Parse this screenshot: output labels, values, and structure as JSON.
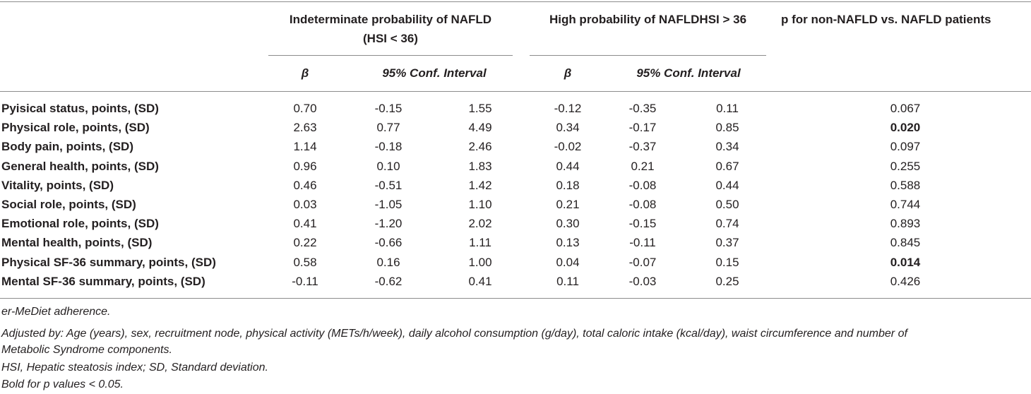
{
  "header": {
    "group1": [
      "Indeterminate probability of NAFLD",
      "(HSI < 36)"
    ],
    "group2": "High probability of NAFLDHSI > 36",
    "group3": "p for non-NAFLD vs. NAFLD patients",
    "beta": "β",
    "ci": "95% Conf. Interval"
  },
  "rows": [
    {
      "label": "Pyisical status, points, (SD)",
      "b1": "0.70",
      "l1": "-0.15",
      "u1": "1.55",
      "b2": "-0.12",
      "l2": "-0.35",
      "u2": "0.11",
      "p": "0.067",
      "bold": false
    },
    {
      "label": "Physical role, points, (SD)",
      "b1": "2.63",
      "l1": "0.77",
      "u1": "4.49",
      "b2": "0.34",
      "l2": "-0.17",
      "u2": "0.85",
      "p": "0.020",
      "bold": true
    },
    {
      "label": "Body pain, points, (SD)",
      "b1": "1.14",
      "l1": "-0.18",
      "u1": "2.46",
      "b2": "-0.02",
      "l2": "-0.37",
      "u2": "0.34",
      "p": "0.097",
      "bold": false
    },
    {
      "label": "General health, points, (SD)",
      "b1": "0.96",
      "l1": "0.10",
      "u1": "1.83",
      "b2": "0.44",
      "l2": "0.21",
      "u2": "0.67",
      "p": "0.255",
      "bold": false
    },
    {
      "label": "Vitality, points, (SD)",
      "b1": "0.46",
      "l1": "-0.51",
      "u1": "1.42",
      "b2": "0.18",
      "l2": "-0.08",
      "u2": "0.44",
      "p": "0.588",
      "bold": false
    },
    {
      "label": "Social role, points, (SD)",
      "b1": "0.03",
      "l1": "-1.05",
      "u1": "1.10",
      "b2": "0.21",
      "l2": "-0.08",
      "u2": "0.50",
      "p": "0.744",
      "bold": false
    },
    {
      "label": "Emotional role, points, (SD)",
      "b1": "0.41",
      "l1": "-1.20",
      "u1": "2.02",
      "b2": "0.30",
      "l2": "-0.15",
      "u2": "0.74",
      "p": "0.893",
      "bold": false
    },
    {
      "label": "Mental health, points, (SD)",
      "b1": "0.22",
      "l1": "-0.66",
      "u1": "1.11",
      "b2": "0.13",
      "l2": "-0.11",
      "u2": "0.37",
      "p": "0.845",
      "bold": false
    },
    {
      "label": "Physical SF-36 summary, points, (SD)",
      "b1": "0.58",
      "l1": "0.16",
      "u1": "1.00",
      "b2": "0.04",
      "l2": "-0.07",
      "u2": "0.15",
      "p": "0.014",
      "bold": true
    },
    {
      "label": "Mental SF-36 summary, points, (SD)",
      "b1": "-0.11",
      "l1": "-0.62",
      "u1": "0.41",
      "b2": "0.11",
      "l2": "-0.03",
      "u2": "0.25",
      "p": "0.426",
      "bold": false
    }
  ],
  "footnotes": [
    "er-MeDiet adherence.",
    "Adjusted by: Age (years), sex, recruitment node, physical activity (METs/h/week), daily alcohol consumption (g/day), total caloric intake (kcal/day), waist circumference and number of",
    "Metabolic Syndrome components.",
    "HSI, Hepatic steatosis index; SD, Standard deviation.",
    "Bold for p values < 0.05."
  ]
}
